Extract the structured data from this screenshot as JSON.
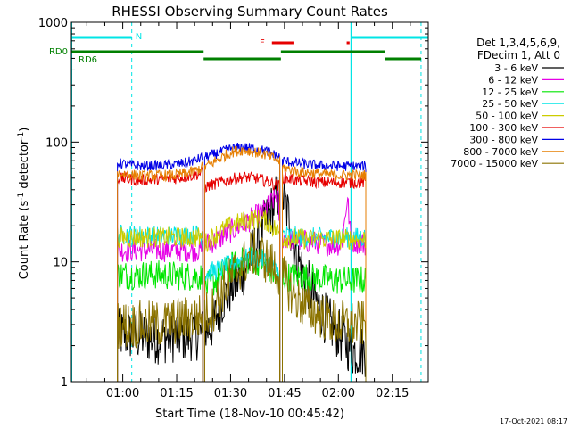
{
  "chart_data": {
    "type": "line",
    "title": "RHESSI Observing Summary Count Rates",
    "xlabel": "Start Time (18-Nov-10 00:45:42)",
    "ylabel_parts": [
      "Count Rate (s",
      "-1",
      " detector",
      "-1",
      ")"
    ],
    "yscale": "log",
    "ylim": [
      1,
      1000
    ],
    "xlim_minutes": [
      45.7,
      145.0
    ],
    "x_ticks": [
      {
        "label": "01:00",
        "minute": 60
      },
      {
        "label": "01:15",
        "minute": 75
      },
      {
        "label": "01:30",
        "minute": 90
      },
      {
        "label": "01:45",
        "minute": 105
      },
      {
        "label": "02:00",
        "minute": 120
      },
      {
        "label": "02:15",
        "minute": 135
      }
    ],
    "y_ticks": [
      {
        "label": "1",
        "value": 1
      },
      {
        "label": "10",
        "value": 10
      },
      {
        "label": "100",
        "value": 100
      },
      {
        "label": "1000",
        "value": 1000
      }
    ],
    "legend_header": [
      "Det 1,3,4,5,6,9,",
      "FDecim 1, Att 0"
    ],
    "legend_placement": "right",
    "timestamp": "17-Oct-2021 08:17",
    "flags": [
      {
        "label": "N",
        "color": "#00e5e5",
        "segments": [
          [
            45.7,
            62.5
          ],
          [
            123.5,
            145.0
          ]
        ]
      },
      {
        "label": "F",
        "color": "#e60000",
        "segments": [
          [
            101.5,
            107.5
          ],
          [
            122.3,
            123.1
          ]
        ]
      },
      {
        "label": "RD0",
        "color": "#008000",
        "segments": [
          [
            45.7,
            82.5
          ],
          [
            104.0,
            133.0
          ]
        ]
      },
      {
        "label": "RD6",
        "color": "#008000",
        "segments": [
          [
            82.5,
            104.0
          ],
          [
            133.0,
            143.0
          ]
        ]
      }
    ],
    "vertical_markers": {
      "color": "#00e5e5",
      "solid_minutes": [
        45.8,
        123.5
      ],
      "dashed_minutes": [
        62.5,
        143.0
      ]
    },
    "gaps_minutes": [
      [
        82.3,
        82.7
      ],
      [
        103.7,
        104.3
      ]
    ],
    "data_start_minute": 58.5,
    "data_end_minute": 127.7,
    "series": [
      {
        "name": "3 - 6 keV",
        "color": "#000000",
        "points": [
          [
            58.5,
            2.5
          ],
          [
            70,
            2.3
          ],
          [
            82,
            2.5
          ],
          [
            85,
            3
          ],
          [
            88,
            5
          ],
          [
            92,
            7
          ],
          [
            95,
            10
          ],
          [
            98,
            16
          ],
          [
            100,
            22
          ],
          [
            102,
            30
          ],
          [
            104,
            40
          ],
          [
            106,
            25
          ],
          [
            108,
            12
          ],
          [
            112,
            6
          ],
          [
            116,
            3.5
          ],
          [
            120,
            2.5
          ],
          [
            124,
            1.8
          ],
          [
            127.7,
            1.8
          ]
        ]
      },
      {
        "name": "6 - 12 keV",
        "color": "#e600e6",
        "points": [
          [
            58.5,
            12.5
          ],
          [
            70,
            12.5
          ],
          [
            82,
            12.5
          ],
          [
            82.6,
            14
          ],
          [
            86,
            15
          ],
          [
            90,
            18
          ],
          [
            94,
            21
          ],
          [
            96,
            23
          ],
          [
            98,
            25
          ],
          [
            100,
            28
          ],
          [
            102,
            33
          ],
          [
            103,
            38
          ],
          [
            104,
            16
          ],
          [
            110,
            15
          ],
          [
            118,
            14
          ],
          [
            121,
            14
          ],
          [
            122.5,
            35
          ],
          [
            123.5,
            15
          ],
          [
            127.7,
            14
          ]
        ]
      },
      {
        "name": "12 - 25 keV",
        "color": "#00e600",
        "points": [
          [
            58.5,
            7.8
          ],
          [
            70,
            7.8
          ],
          [
            82,
            7.5
          ],
          [
            82.6,
            6
          ],
          [
            86,
            7
          ],
          [
            90,
            9
          ],
          [
            93,
            10
          ],
          [
            96,
            10.5
          ],
          [
            99,
            10
          ],
          [
            102,
            8
          ],
          [
            104,
            6
          ],
          [
            104.3,
            7.5
          ],
          [
            110,
            7.5
          ],
          [
            120,
            7
          ],
          [
            127.7,
            7
          ]
        ]
      },
      {
        "name": "25 - 50 keV",
        "color": "#00e5e5",
        "points": [
          [
            58.5,
            17
          ],
          [
            70,
            16.5
          ],
          [
            82,
            17
          ],
          [
            82.6,
            8
          ],
          [
            86,
            8.5
          ],
          [
            90,
            9.5
          ],
          [
            93,
            10.5
          ],
          [
            96,
            11
          ],
          [
            99,
            10.5
          ],
          [
            102,
            9
          ],
          [
            104,
            8
          ],
          [
            104.3,
            17
          ],
          [
            110,
            16
          ],
          [
            120,
            16
          ],
          [
            127.7,
            16
          ]
        ]
      },
      {
        "name": "50 - 100 keV",
        "color": "#cccc00",
        "points": [
          [
            58.5,
            16
          ],
          [
            70,
            16
          ],
          [
            82,
            16
          ],
          [
            82.6,
            14
          ],
          [
            86,
            17
          ],
          [
            90,
            20
          ],
          [
            94,
            22
          ],
          [
            97,
            23
          ],
          [
            100,
            22
          ],
          [
            103,
            18
          ],
          [
            104,
            17
          ],
          [
            104.3,
            16
          ],
          [
            110,
            15.5
          ],
          [
            120,
            15.5
          ],
          [
            127.7,
            15.5
          ]
        ]
      },
      {
        "name": "100 - 300 keV",
        "color": "#e60000",
        "points": [
          [
            58.5,
            50
          ],
          [
            65,
            48
          ],
          [
            75,
            50
          ],
          [
            80,
            53
          ],
          [
            82.3,
            56
          ],
          [
            82.7,
            42
          ],
          [
            86,
            45
          ],
          [
            90,
            49
          ],
          [
            94,
            51
          ],
          [
            97,
            50
          ],
          [
            100,
            47
          ],
          [
            103.5,
            43
          ],
          [
            104.3,
            51
          ],
          [
            108,
            48
          ],
          [
            115,
            46
          ],
          [
            120,
            46
          ],
          [
            127.7,
            46
          ]
        ]
      },
      {
        "name": "300 - 800 keV",
        "color": "#0000e6",
        "points": [
          [
            58.5,
            67
          ],
          [
            65,
            63
          ],
          [
            75,
            65
          ],
          [
            80,
            70
          ],
          [
            82.3,
            75
          ],
          [
            82.7,
            75
          ],
          [
            86,
            80
          ],
          [
            90,
            88
          ],
          [
            93,
            91
          ],
          [
            96,
            89
          ],
          [
            100,
            84
          ],
          [
            103.5,
            75
          ],
          [
            104.3,
            70
          ],
          [
            108,
            67
          ],
          [
            115,
            64
          ],
          [
            120,
            63
          ],
          [
            127.7,
            63
          ]
        ]
      },
      {
        "name": "800 - 7000 keV",
        "color": "#e67e00",
        "points": [
          [
            58.5,
            55
          ],
          [
            65,
            52
          ],
          [
            75,
            53
          ],
          [
            80,
            57
          ],
          [
            82.3,
            62
          ],
          [
            82.7,
            62
          ],
          [
            86,
            70
          ],
          [
            90,
            82
          ],
          [
            93,
            86
          ],
          [
            96,
            84
          ],
          [
            100,
            78
          ],
          [
            103.5,
            70
          ],
          [
            104.3,
            62
          ],
          [
            108,
            57
          ],
          [
            115,
            54
          ],
          [
            120,
            53
          ],
          [
            127.7,
            53
          ]
        ]
      },
      {
        "name": "7000 - 15000 keV",
        "color": "#8b7300",
        "points": [
          [
            58.5,
            3
          ],
          [
            70,
            3
          ],
          [
            82,
            3.5
          ],
          [
            85,
            4
          ],
          [
            88,
            6
          ],
          [
            91,
            8
          ],
          [
            94,
            10
          ],
          [
            96,
            12
          ],
          [
            99,
            11
          ],
          [
            102,
            9
          ],
          [
            105,
            7
          ],
          [
            108,
            5
          ],
          [
            112,
            4
          ],
          [
            116,
            3.5
          ],
          [
            120,
            3
          ],
          [
            127.7,
            3
          ]
        ]
      }
    ]
  }
}
